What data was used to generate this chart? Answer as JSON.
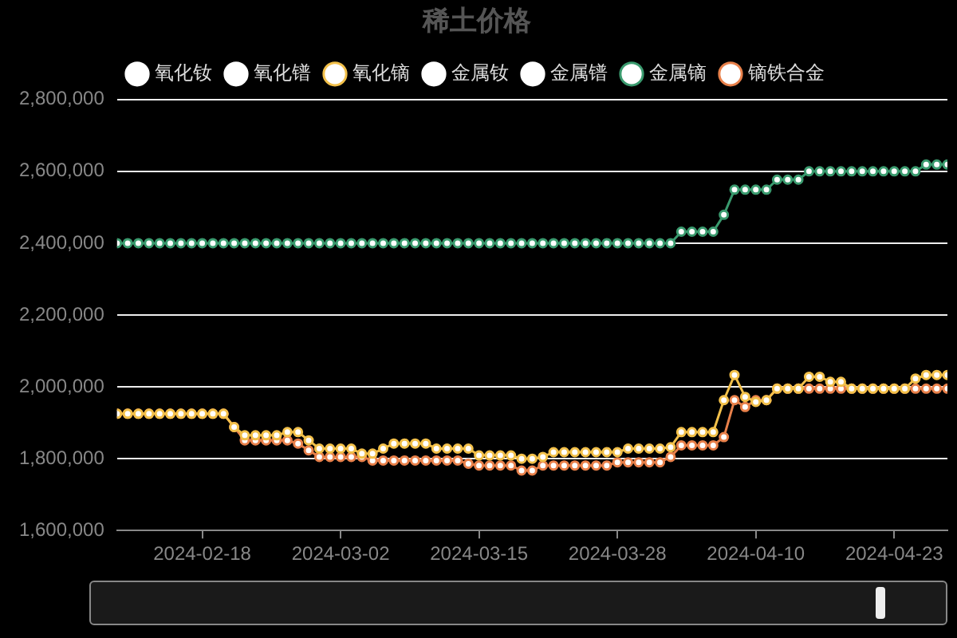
{
  "chart_data": {
    "type": "line",
    "title": "稀土价格",
    "x": [
      "2024-02-10",
      "2024-02-11",
      "2024-02-12",
      "2024-02-13",
      "2024-02-14",
      "2024-02-15",
      "2024-02-16",
      "2024-02-17",
      "2024-02-18",
      "2024-02-19",
      "2024-02-20",
      "2024-02-21",
      "2024-02-22",
      "2024-02-23",
      "2024-02-24",
      "2024-02-25",
      "2024-02-26",
      "2024-02-27",
      "2024-02-28",
      "2024-02-29",
      "2024-03-01",
      "2024-03-02",
      "2024-03-03",
      "2024-03-04",
      "2024-03-05",
      "2024-03-06",
      "2024-03-07",
      "2024-03-08",
      "2024-03-09",
      "2024-03-10",
      "2024-03-11",
      "2024-03-12",
      "2024-03-13",
      "2024-03-14",
      "2024-03-15",
      "2024-03-16",
      "2024-03-17",
      "2024-03-18",
      "2024-03-19",
      "2024-03-20",
      "2024-03-21",
      "2024-03-22",
      "2024-03-23",
      "2024-03-24",
      "2024-03-25",
      "2024-03-26",
      "2024-03-27",
      "2024-03-28",
      "2024-03-29",
      "2024-03-30",
      "2024-03-31",
      "2024-04-01",
      "2024-04-02",
      "2024-04-03",
      "2024-04-04",
      "2024-04-05",
      "2024-04-06",
      "2024-04-07",
      "2024-04-08",
      "2024-04-09",
      "2024-04-10",
      "2024-04-11",
      "2024-04-12",
      "2024-04-13",
      "2024-04-14",
      "2024-04-15",
      "2024-04-16",
      "2024-04-17",
      "2024-04-18",
      "2024-04-19",
      "2024-04-20",
      "2024-04-21",
      "2024-04-22",
      "2024-04-23",
      "2024-04-24",
      "2024-04-25",
      "2024-04-26",
      "2024-04-27",
      "2024-04-28"
    ],
    "series": [
      {
        "name": "氧化钕",
        "color": "#ffffff",
        "values": [
          null,
          null,
          null,
          null,
          null,
          null,
          null,
          null,
          null,
          null,
          null,
          null,
          null,
          null,
          null,
          null,
          null,
          null,
          null,
          null,
          null,
          null,
          null,
          null,
          null,
          null,
          null,
          null,
          null,
          null,
          null,
          null,
          null,
          null,
          null,
          null,
          null,
          null,
          null,
          null,
          null,
          null,
          null,
          null,
          null,
          null,
          null,
          null,
          null,
          null,
          null,
          null,
          null,
          null,
          null,
          null,
          null,
          null,
          null,
          null,
          null,
          null,
          null,
          null,
          null,
          null,
          null,
          null,
          null,
          null,
          null,
          null,
          null,
          null,
          null,
          null,
          null,
          null,
          null
        ]
      },
      {
        "name": "氧化镨",
        "color": "#ffffff",
        "values": [
          null,
          null,
          null,
          null,
          null,
          null,
          null,
          null,
          null,
          null,
          null,
          null,
          null,
          null,
          null,
          null,
          null,
          null,
          null,
          null,
          null,
          null,
          null,
          null,
          null,
          null,
          null,
          null,
          null,
          null,
          null,
          null,
          null,
          null,
          null,
          null,
          null,
          null,
          null,
          null,
          null,
          null,
          null,
          null,
          null,
          null,
          null,
          null,
          null,
          null,
          null,
          null,
          null,
          null,
          null,
          null,
          null,
          null,
          null,
          null,
          null,
          null,
          null,
          null,
          null,
          null,
          null,
          null,
          null,
          null,
          null,
          null,
          null,
          null,
          null,
          null,
          null,
          null,
          null
        ]
      },
      {
        "name": "氧化镝",
        "color": "#f2c04a",
        "values": [
          1925000,
          1925000,
          1925000,
          1925000,
          1925000,
          1925000,
          1925000,
          1925000,
          1925000,
          1925000,
          1925000,
          1888000,
          1865000,
          1865000,
          1865000,
          1865000,
          1874000,
          1874000,
          1851000,
          1828000,
          1828000,
          1828000,
          1828000,
          1814000,
          1814000,
          1828000,
          1842000,
          1842000,
          1842000,
          1842000,
          1828000,
          1828000,
          1828000,
          1828000,
          1809000,
          1809000,
          1809000,
          1809000,
          1800000,
          1800000,
          1805000,
          1818000,
          1818000,
          1818000,
          1818000,
          1818000,
          1818000,
          1818000,
          1828000,
          1828000,
          1828000,
          1828000,
          1832000,
          1874000,
          1874000,
          1874000,
          1874000,
          1963000,
          2033000,
          1972000,
          1958000,
          1963000,
          1995000,
          1995000,
          1995000,
          2028000,
          2028000,
          2014000,
          2014000,
          1995000,
          1995000,
          1995000,
          1995000,
          1995000,
          1995000,
          2023000,
          2033000,
          2033000,
          2033000
        ]
      },
      {
        "name": "金属钕",
        "color": "#ffffff",
        "values": [
          null,
          null,
          null,
          null,
          null,
          null,
          null,
          null,
          null,
          null,
          null,
          null,
          null,
          null,
          null,
          null,
          null,
          null,
          null,
          null,
          null,
          null,
          null,
          null,
          null,
          null,
          null,
          null,
          null,
          null,
          null,
          null,
          null,
          null,
          null,
          null,
          null,
          null,
          null,
          null,
          null,
          null,
          null,
          null,
          null,
          null,
          null,
          null,
          null,
          null,
          null,
          null,
          null,
          null,
          null,
          null,
          null,
          null,
          null,
          null,
          null,
          null,
          null,
          null,
          null,
          null,
          null,
          null,
          null,
          null,
          null,
          null,
          null,
          null,
          null,
          null,
          null,
          null,
          null
        ]
      },
      {
        "name": "金属镨",
        "color": "#ffffff",
        "values": [
          null,
          null,
          null,
          null,
          null,
          null,
          null,
          null,
          null,
          null,
          null,
          null,
          null,
          null,
          null,
          null,
          null,
          null,
          null,
          null,
          null,
          null,
          null,
          null,
          null,
          null,
          null,
          null,
          null,
          null,
          null,
          null,
          null,
          null,
          null,
          null,
          null,
          null,
          null,
          null,
          null,
          null,
          null,
          null,
          null,
          null,
          null,
          null,
          null,
          null,
          null,
          null,
          null,
          null,
          null,
          null,
          null,
          null,
          null,
          null,
          null,
          null,
          null,
          null,
          null,
          null,
          null,
          null,
          null,
          null,
          null,
          null,
          null,
          null,
          null,
          null,
          null,
          null,
          null
        ]
      },
      {
        "name": "金属镝",
        "color": "#3a9a6e",
        "values": [
          2400000,
          2400000,
          2400000,
          2400000,
          2400000,
          2400000,
          2400000,
          2400000,
          2400000,
          2400000,
          2400000,
          2400000,
          2400000,
          2400000,
          2400000,
          2400000,
          2400000,
          2400000,
          2400000,
          2400000,
          2400000,
          2400000,
          2400000,
          2400000,
          2400000,
          2400000,
          2400000,
          2400000,
          2400000,
          2400000,
          2400000,
          2400000,
          2400000,
          2400000,
          2400000,
          2400000,
          2400000,
          2400000,
          2400000,
          2400000,
          2400000,
          2400000,
          2400000,
          2400000,
          2400000,
          2400000,
          2400000,
          2400000,
          2400000,
          2400000,
          2400000,
          2400000,
          2400000,
          2432000,
          2432000,
          2432000,
          2432000,
          2479000,
          2549000,
          2549000,
          2549000,
          2549000,
          2577000,
          2577000,
          2577000,
          2600000,
          2600000,
          2600000,
          2600000,
          2600000,
          2600000,
          2600000,
          2600000,
          2600000,
          2600000,
          2600000,
          2619000,
          2619000,
          2619000
        ]
      },
      {
        "name": "镝铁合金",
        "color": "#e8804a",
        "values": [
          1925000,
          1925000,
          1925000,
          1925000,
          1925000,
          1925000,
          1925000,
          1925000,
          1925000,
          1925000,
          1925000,
          1888000,
          1851000,
          1851000,
          1851000,
          1851000,
          1851000,
          1842000,
          1823000,
          1805000,
          1805000,
          1805000,
          1805000,
          1805000,
          1795000,
          1795000,
          1795000,
          1795000,
          1795000,
          1795000,
          1795000,
          1795000,
          1795000,
          1786000,
          1781000,
          1781000,
          1781000,
          1781000,
          1767000,
          1767000,
          1781000,
          1781000,
          1781000,
          1781000,
          1781000,
          1781000,
          1781000,
          1790000,
          1790000,
          1790000,
          1790000,
          1790000,
          1805000,
          1837000,
          1837000,
          1837000,
          1837000,
          1860000,
          1963000,
          1944000,
          1963000,
          1963000,
          1995000,
          1995000,
          1995000,
          1995000,
          1995000,
          1995000,
          1995000,
          1995000,
          1995000,
          1995000,
          1995000,
          1995000,
          1995000,
          1995000,
          1995000,
          1995000,
          1995000
        ]
      }
    ],
    "xlim": [
      "2024-02-10",
      "2024-04-28"
    ],
    "xticks": [
      "2024-02-18",
      "2024-03-02",
      "2024-03-15",
      "2024-03-28",
      "2024-04-10",
      "2024-04-23"
    ],
    "ylim": [
      1600000,
      2800000
    ],
    "yticks": [
      {
        "value": 1600000,
        "label": "1,600,000"
      },
      {
        "value": 1800000,
        "label": "1,800,000"
      },
      {
        "value": 2000000,
        "label": "2,000,000"
      },
      {
        "value": 2200000,
        "label": "2,200,000"
      },
      {
        "value": 2400000,
        "label": "2,400,000"
      },
      {
        "value": 2600000,
        "label": "2,600,000"
      },
      {
        "value": 2800000,
        "label": "2,800,000"
      }
    ],
    "grid": "y",
    "legend": "top",
    "marker": "circle",
    "line_style": "solid"
  }
}
